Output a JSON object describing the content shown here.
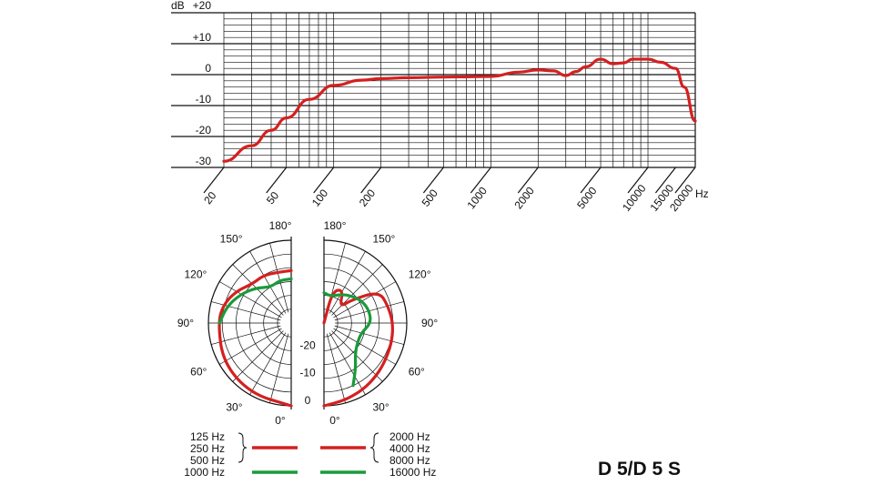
{
  "model_label": "D 5/D 5 S",
  "colors": {
    "red": "#d42020",
    "green": "#1a9a3a",
    "grid": "#111111"
  },
  "chart_data": [
    {
      "type": "line",
      "xscale": "log",
      "xlim": [
        20,
        20000
      ],
      "ylim": [
        -30,
        20
      ],
      "ylabel": "dB",
      "xunit": "Hz",
      "ytick_labels": [
        "+20",
        "+10",
        "0",
        "-10",
        "-20",
        "-30"
      ],
      "ytick_values": [
        20,
        10,
        0,
        -10,
        -20,
        -30
      ],
      "xtick_labels": [
        "20",
        "50",
        "100",
        "200",
        "500",
        "1000",
        "2000",
        "5000",
        "10000",
        "15000",
        "20000"
      ],
      "xtick_values": [
        20,
        50,
        100,
        200,
        500,
        1000,
        2000,
        5000,
        10000,
        15000,
        20000
      ],
      "grid": true,
      "series": [
        {
          "color": "#d42020",
          "points": [
            [
              20,
              -28
            ],
            [
              30,
              -23
            ],
            [
              40,
              -18
            ],
            [
              50,
              -14
            ],
            [
              70,
              -8
            ],
            [
              100,
              -3.5
            ],
            [
              150,
              -1.8
            ],
            [
              200,
              -1.3
            ],
            [
              300,
              -1
            ],
            [
              500,
              -0.8
            ],
            [
              1000,
              -0.6
            ],
            [
              1500,
              0.8
            ],
            [
              2000,
              1.5
            ],
            [
              2500,
              1.2
            ],
            [
              3000,
              -0.3
            ],
            [
              3500,
              1
            ],
            [
              4000,
              2.5
            ],
            [
              5000,
              5
            ],
            [
              6000,
              3.5
            ],
            [
              7000,
              3.8
            ],
            [
              8000,
              5
            ],
            [
              10000,
              5
            ],
            [
              12000,
              4
            ],
            [
              15000,
              2
            ],
            [
              17000,
              -4
            ],
            [
              20000,
              -15
            ]
          ]
        }
      ]
    },
    {
      "type": "polar",
      "angle_labels": [
        "0°",
        "30°",
        "60°",
        "90°",
        "120°",
        "150°",
        "180°"
      ],
      "angle_values": [
        0,
        30,
        60,
        90,
        120,
        150,
        180
      ],
      "ring_labels": [
        "0",
        "-10",
        "-20"
      ],
      "ring_values": [
        0,
        -10,
        -20
      ],
      "series": [
        {
          "name": "125 Hz\n250 Hz\n500 Hz",
          "side": "left",
          "color": "#d42020",
          "points": [
            [
              0,
              0
            ],
            [
              30,
              -0.5
            ],
            [
              60,
              -1.5
            ],
            [
              90,
              -3.5
            ],
            [
              105,
              -4.5
            ],
            [
              120,
              -7
            ],
            [
              135,
              -10
            ],
            [
              150,
              -10
            ],
            [
              165,
              -11
            ],
            [
              180,
              -11
            ]
          ]
        },
        {
          "name": "1000 Hz",
          "side": "left",
          "color": "#1a9a3a",
          "points": [
            [
              90,
              -4
            ],
            [
              105,
              -6
            ],
            [
              120,
              -9
            ],
            [
              135,
              -12
            ],
            [
              150,
              -15
            ],
            [
              165,
              -14
            ],
            [
              180,
              -14
            ]
          ]
        },
        {
          "name": "2000 Hz\n4000 Hz\n8000 Hz",
          "side": "right",
          "color": "#d42020",
          "points": [
            [
              0,
              0
            ],
            [
              15,
              -1
            ],
            [
              30,
              -2
            ],
            [
              45,
              -3
            ],
            [
              60,
              -4
            ],
            [
              75,
              -4.5
            ],
            [
              90,
              -5
            ],
            [
              105,
              -6
            ],
            [
              120,
              -7
            ],
            [
              130,
              -17
            ],
            [
              135,
              -22
            ],
            [
              150,
              -16
            ],
            [
              165,
              -18
            ],
            [
              180,
              -30
            ]
          ]
        },
        {
          "name": "16000 Hz",
          "side": "right",
          "color": "#1a9a3a",
          "points": [
            [
              25,
              -5
            ],
            [
              35,
              -10
            ],
            [
              45,
              -14
            ],
            [
              60,
              -16
            ],
            [
              75,
              -16
            ],
            [
              90,
              -13
            ],
            [
              105,
              -13
            ],
            [
              120,
              -14
            ],
            [
              135,
              -16
            ],
            [
              150,
              -18
            ],
            [
              165,
              -20
            ],
            [
              180,
              -19
            ]
          ]
        }
      ],
      "legend": {
        "left": {
          "red": [
            "125 Hz",
            "250 Hz",
            "500 Hz"
          ],
          "green": [
            "1000 Hz"
          ]
        },
        "right": {
          "red": [
            "2000 Hz",
            "4000 Hz",
            "8000 Hz"
          ],
          "green": [
            "16000 Hz"
          ]
        }
      }
    }
  ]
}
